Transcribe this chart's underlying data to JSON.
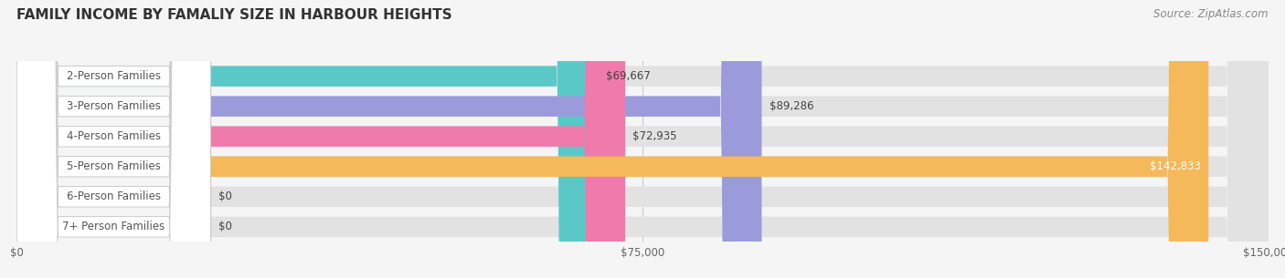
{
  "title": "FAMILY INCOME BY FAMALIY SIZE IN HARBOUR HEIGHTS",
  "source": "Source: ZipAtlas.com",
  "categories": [
    "2-Person Families",
    "3-Person Families",
    "4-Person Families",
    "5-Person Families",
    "6-Person Families",
    "7+ Person Families"
  ],
  "values": [
    69667,
    89286,
    72935,
    142833,
    0,
    0
  ],
  "bar_colors": [
    "#5bc8c8",
    "#9b9bdb",
    "#f07aab",
    "#f5b85a",
    "#f0a0a8",
    "#8ec8f0"
  ],
  "bg_color": "#f5f5f5",
  "xlim": [
    0,
    150000
  ],
  "xticks": [
    0,
    75000,
    150000
  ],
  "xtick_labels": [
    "$0",
    "$75,000",
    "$150,000"
  ],
  "title_fontsize": 11,
  "label_fontsize": 8.5,
  "value_fontsize": 8.5,
  "source_fontsize": 8.5
}
